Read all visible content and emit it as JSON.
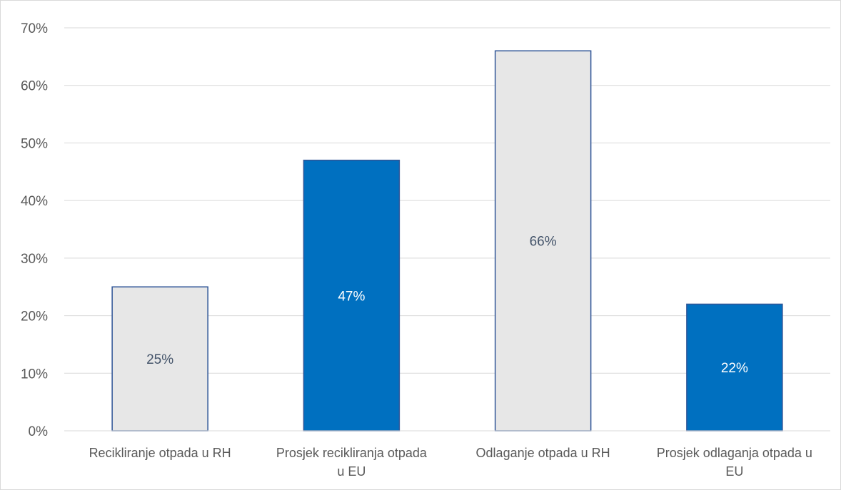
{
  "chart_data": {
    "type": "bar",
    "categories": [
      [
        "Recikliranje otpada u RH"
      ],
      [
        "Prosjek recikliranja otpada",
        "u EU"
      ],
      [
        "Odlaganje otpada u RH"
      ],
      [
        "Prosjek odlaganja otpada u",
        "EU"
      ]
    ],
    "values": [
      25,
      47,
      66,
      22
    ],
    "data_labels": [
      "25%",
      "47%",
      "66%",
      "22%"
    ],
    "bar_fill": [
      "#e7e7e7",
      "#0070c0",
      "#e7e7e7",
      "#0070c0"
    ],
    "bar_stroke": "#2f5597",
    "label_colors": [
      "#44546a",
      "#ffffff",
      "#44546a",
      "#ffffff"
    ],
    "ylim": [
      0,
      70
    ],
    "yticks": [
      0,
      10,
      20,
      30,
      40,
      50,
      60,
      70
    ],
    "ytick_labels": [
      "0%",
      "10%",
      "20%",
      "30%",
      "40%",
      "50%",
      "60%",
      "70%"
    ],
    "grid": true,
    "grid_color": "#d9d9d9",
    "title": "",
    "xlabel": "",
    "ylabel": ""
  }
}
